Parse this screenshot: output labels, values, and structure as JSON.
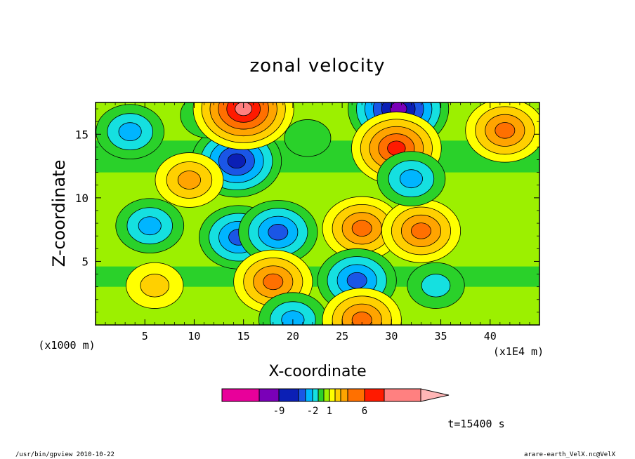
{
  "chart_data": {
    "type": "heatmap",
    "title": "zonal velocity",
    "xlabel": "X-coordinate",
    "ylabel": "Z-coordinate",
    "x_unit": "(x1E4 m)",
    "y_unit": "(x1000 m)",
    "xlim": [
      0,
      45
    ],
    "ylim": [
      0,
      17.5
    ],
    "xticks": [
      5,
      10,
      15,
      20,
      25,
      30,
      35,
      40
    ],
    "yticks": [
      5,
      10,
      15
    ],
    "contour_levels": [
      -14,
      -9,
      -6,
      -4,
      -2,
      -1,
      0,
      1,
      2,
      3,
      4,
      6,
      9,
      14
    ],
    "colorbar_labels": [
      "-9",
      "-2",
      "1",
      "6"
    ],
    "colors": [
      "#e8009a",
      "#7a00b8",
      "#0b1fb5",
      "#1a56e6",
      "#00b5ff",
      "#15e0e0",
      "#2ad12a",
      "#9cf000",
      "#ffff00",
      "#ffd000",
      "#ffa400",
      "#ff7000",
      "#ff1a00",
      "#ff8080",
      "#ffb6b6"
    ],
    "features": [
      {
        "x": 14.3,
        "z": 12.9,
        "value": -8
      },
      {
        "x": 14.5,
        "z": 6.9,
        "value": -5
      },
      {
        "x": 18.5,
        "z": 7.3,
        "value": -5
      },
      {
        "x": 5.5,
        "z": 7.8,
        "value": -3
      },
      {
        "x": 3.5,
        "z": 15.2,
        "value": -4
      },
      {
        "x": 11.5,
        "z": 16.5,
        "value": -2
      },
      {
        "x": 15.0,
        "z": 17.0,
        "value": 9
      },
      {
        "x": 30.7,
        "z": 17.0,
        "value": -10
      },
      {
        "x": 30.5,
        "z": 13.9,
        "value": 8
      },
      {
        "x": 27.0,
        "z": 7.6,
        "value": 5
      },
      {
        "x": 33.0,
        "z": 7.4,
        "value": 5
      },
      {
        "x": 41.5,
        "z": 15.3,
        "value": 4
      },
      {
        "x": 9.5,
        "z": 11.4,
        "value": 3
      },
      {
        "x": 18.0,
        "z": 3.4,
        "value": 5
      },
      {
        "x": 6.0,
        "z": 3.1,
        "value": 2
      },
      {
        "x": 26.5,
        "z": 3.5,
        "value": -5
      },
      {
        "x": 34.5,
        "z": 3.1,
        "value": -2
      },
      {
        "x": 20.0,
        "z": 0.4,
        "value": -4
      },
      {
        "x": 27.0,
        "z": 0.4,
        "value": 5
      },
      {
        "x": 32.0,
        "z": 11.5,
        "value": -4
      },
      {
        "x": 21.5,
        "z": 14.7,
        "value": -1
      }
    ]
  },
  "annotations": {
    "time": "t=15400 s",
    "footer_left": "/usr/bin/gpview  2010-10-22",
    "footer_right": "arare-earth_VelX.nc@VelX"
  }
}
